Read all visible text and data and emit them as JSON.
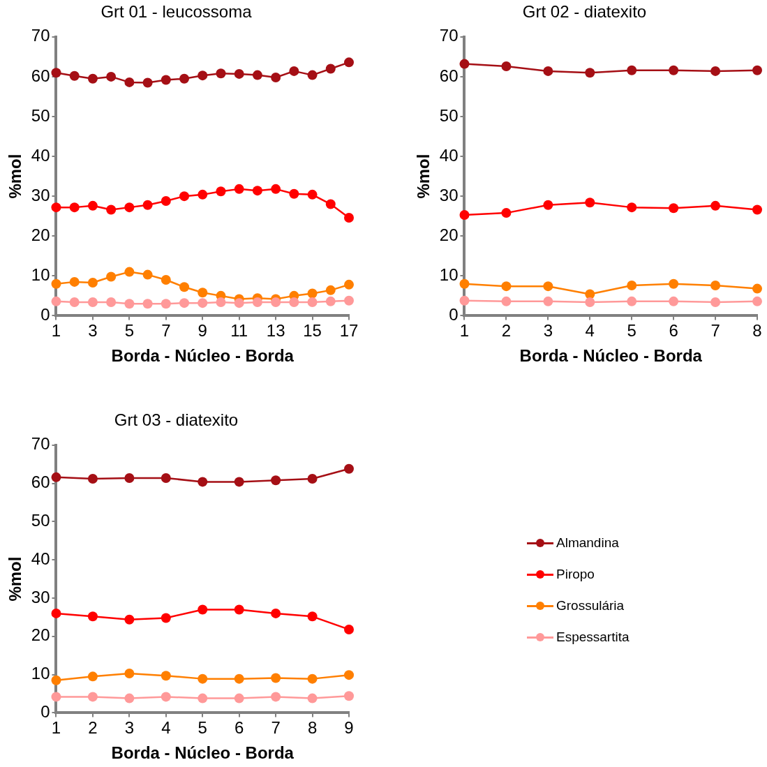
{
  "chart_data": [
    {
      "type": "line",
      "title": "Grt 01 - leucossoma",
      "xlabel": "Borda - Núcleo - Borda",
      "ylabel": "%mol",
      "x": [
        1,
        2,
        3,
        4,
        5,
        6,
        7,
        8,
        9,
        10,
        11,
        12,
        13,
        14,
        15,
        16,
        17
      ],
      "xlim": [
        1,
        17
      ],
      "xticks": [
        1,
        3,
        5,
        7,
        9,
        11,
        13,
        15,
        17
      ],
      "ylim": [
        0,
        70
      ],
      "yticks": [
        0,
        10,
        20,
        30,
        40,
        50,
        60,
        70
      ],
      "grid": false,
      "legend": false,
      "marker": "circle",
      "line_style": "solid",
      "series": [
        {
          "color": "#a50f15",
          "values": [
            61,
            60.2,
            59.5,
            60,
            58.6,
            58.5,
            59.2,
            59.5,
            60.3,
            60.8,
            60.7,
            60.4,
            59.8,
            61.4,
            60.4,
            62,
            63.6
          ]
        },
        {
          "color": "#ff0000",
          "values": [
            27.2,
            27.2,
            27.6,
            26.6,
            27.2,
            27.8,
            28.8,
            30,
            30.4,
            31.2,
            31.8,
            31.4,
            31.8,
            30.6,
            30.4,
            28,
            24.6
          ]
        },
        {
          "color": "#ff7f00",
          "values": [
            8,
            8.5,
            8.3,
            9.8,
            11,
            10.3,
            9,
            7.2,
            5.8,
            5,
            4.2,
            4.4,
            4.2,
            5,
            5.6,
            6.4,
            7.8
          ]
        },
        {
          "color": "#ff9999",
          "values": [
            3.6,
            3.4,
            3.4,
            3.4,
            3,
            3,
            3,
            3.2,
            3.2,
            3.4,
            3.2,
            3.4,
            3.4,
            3.4,
            3.4,
            3.6,
            3.8
          ]
        }
      ]
    },
    {
      "type": "line",
      "title": "Grt 02 - diatexito",
      "xlabel": "Borda - Núcleo - Borda",
      "ylabel": "%mol",
      "x": [
        1,
        2,
        3,
        4,
        5,
        6,
        7,
        8
      ],
      "xlim": [
        1,
        8
      ],
      "xticks": [
        1,
        2,
        3,
        4,
        5,
        6,
        7,
        8
      ],
      "ylim": [
        0,
        70
      ],
      "yticks": [
        0,
        10,
        20,
        30,
        40,
        50,
        60,
        70
      ],
      "grid": false,
      "legend": false,
      "marker": "circle",
      "line_style": "solid",
      "series": [
        {
          "color": "#a50f15",
          "values": [
            63.2,
            62.6,
            61.4,
            61,
            61.6,
            61.6,
            61.4,
            61.6
          ]
        },
        {
          "color": "#ff0000",
          "values": [
            25.3,
            25.8,
            27.8,
            28.4,
            27.2,
            27,
            27.6,
            26.6
          ]
        },
        {
          "color": "#ff7f00",
          "values": [
            8,
            7.4,
            7.4,
            5.4,
            7.6,
            8,
            7.6,
            6.8
          ]
        },
        {
          "color": "#ff9999",
          "values": [
            3.8,
            3.6,
            3.6,
            3.4,
            3.6,
            3.6,
            3.4,
            3.6
          ]
        }
      ]
    },
    {
      "type": "line",
      "title": "Grt 03 - diatexito",
      "xlabel": "Borda - Núcleo - Borda",
      "ylabel": "%mol",
      "x": [
        1,
        2,
        3,
        4,
        5,
        6,
        7,
        8,
        9
      ],
      "xlim": [
        1,
        9
      ],
      "xticks": [
        1,
        2,
        3,
        4,
        5,
        6,
        7,
        8,
        9
      ],
      "ylim": [
        0,
        70
      ],
      "yticks": [
        0,
        10,
        20,
        30,
        40,
        50,
        60,
        70
      ],
      "grid": false,
      "legend": "right",
      "marker": "circle",
      "line_style": "solid",
      "series": [
        {
          "name": "Almandina",
          "color": "#a50f15",
          "values": [
            61.6,
            61.2,
            61.4,
            61.4,
            60.4,
            60.4,
            60.8,
            61.2,
            63.8
          ]
        },
        {
          "name": "Piropo",
          "color": "#ff0000",
          "values": [
            26,
            25.2,
            24.4,
            24.8,
            27,
            27,
            26,
            25.2,
            21.8
          ]
        },
        {
          "name": "Grossulária",
          "color": "#ff7f00",
          "values": [
            8.5,
            9.5,
            10.3,
            9.7,
            8.9,
            8.9,
            9.1,
            8.9,
            9.9
          ]
        },
        {
          "name": "Espessartita",
          "color": "#ff9999",
          "values": [
            4.2,
            4.2,
            3.8,
            4.2,
            3.8,
            3.8,
            4.2,
            3.8,
            4.4
          ]
        }
      ]
    }
  ]
}
